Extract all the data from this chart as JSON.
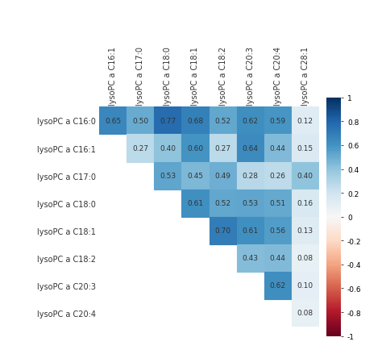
{
  "row_labels": [
    "lysoPC a C16:0",
    "lysoPC a C16:1",
    "lysoPC a C17:0",
    "lysoPC a C18:0",
    "lysoPC a C18:1",
    "lysoPC a C18:2",
    "lysoPC a C20:3",
    "lysoPC a C20:4"
  ],
  "col_labels": [
    "lysoPC a C16:1",
    "lysoPC a C17:0",
    "lysoPC a C18:0",
    "lysoPC a C18:1",
    "lysoPC a C18:2",
    "lysoPC a C20:3",
    "lysoPC a C20:4",
    "lysoPC a C28:1"
  ],
  "matrix": [
    [
      0.65,
      0.5,
      0.77,
      0.68,
      0.52,
      0.62,
      0.59,
      0.12
    ],
    [
      null,
      0.27,
      0.4,
      0.6,
      0.27,
      0.64,
      0.44,
      0.15
    ],
    [
      null,
      null,
      0.53,
      0.45,
      0.49,
      0.28,
      0.26,
      0.4
    ],
    [
      null,
      null,
      null,
      0.61,
      0.52,
      0.53,
      0.51,
      0.16
    ],
    [
      null,
      null,
      null,
      null,
      0.7,
      0.61,
      0.56,
      0.13
    ],
    [
      null,
      null,
      null,
      null,
      null,
      0.43,
      0.44,
      0.08
    ],
    [
      null,
      null,
      null,
      null,
      null,
      null,
      0.62,
      0.1
    ],
    [
      null,
      null,
      null,
      null,
      null,
      null,
      null,
      0.08
    ]
  ],
  "vmin": -1,
  "vmax": 1,
  "colorbar_ticks": [
    1,
    0.8,
    0.6,
    0.4,
    0.2,
    0,
    -0.2,
    -0.4,
    -0.6,
    -0.8,
    -1
  ],
  "text_color": "#333333",
  "cell_text_fontsize": 6.5,
  "label_fontsize": 7.0,
  "colorbar_fontsize": 6.5,
  "bg_color": "#ffffff"
}
